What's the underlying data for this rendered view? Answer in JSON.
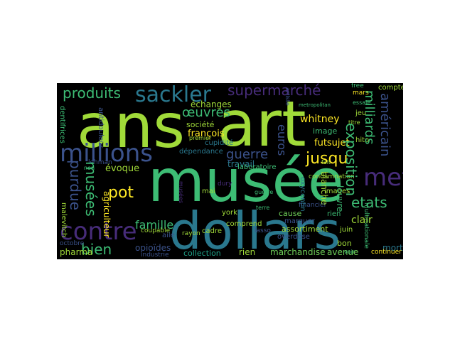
{
  "words": {
    "ans": "ans",
    "art": "art",
    "musee": "musée",
    "dollars": "dollars",
    "millions": "millions",
    "contre": "contre",
    "sackler": "sackler",
    "produits": "produits",
    "supermarche": "supermarché",
    "met": "met",
    "oeuvres": "œuvres",
    "guerre": "guerre",
    "jusqu": "jusqu",
    "exposition": "exposition",
    "milliards": "milliards",
    "americain": "américain",
    "etats": "etats",
    "euros": "euros",
    "purdue": "purdue",
    "musees": "musées",
    "pot": "pot",
    "famille": "famille",
    "bien": "bien",
    "francois": "françois",
    "echanges": "échanges",
    "societe": "société",
    "whitney": "whitney",
    "futsujet": "futsujet",
    "image": "image",
    "evoque": "évoque",
    "travail": "travail",
    "rien1": "rien",
    "rien2": "rien",
    "laboratoire": "laboratoire",
    "blanche": "blanche",
    "louvre": "louvre",
    "mort": "mort",
    "clair": "clair",
    "juin": "juin",
    "bon": "bon",
    "marchandise": "marchandise",
    "avenue": "avenue",
    "collection": "collection",
    "pharma": "pharma",
    "opioides": "opioïdes",
    "industrie": "industrie",
    "compte": "compte",
    "mars": "mars",
    "free": "free",
    "jeu": "jeu",
    "hito": "hito",
    "continuer": "continuer",
    "agriculteur": "agriculteur",
    "dentifrices": "dentifrices",
    "malevitch": "malevitch",
    "cadre": "cadre",
    "comprend": "comprend",
    "assortiment": "assortiment",
    "condamnation": "condamnation",
    "images": "images",
    "cupidite": "cupidité",
    "dependance": "dépendance",
    "cause": "cause",
    "marquer": "marquer",
    "mai": "mai",
    "york": "york",
    "octobre": "octobre",
    "aile": "aile",
    "non": "non",
    "coupable": "coupable",
    "rayon": "rayon",
    "lehman": "lehman",
    "titre": "titre",
    "essaie": "essaie",
    "terre": "terre",
    "overdose": "overdose",
    "voir": "voir",
    "oxycontin": "oxycontin",
    "premier": "premier",
    "antidouleur": "antidouleur",
    "multinationale": "multinationale",
    "metropolitan": "metropolitan",
    "fait": "fait",
    "lasso": "lasso",
    "dury": "dury",
    "artiste": "artiste",
    "musees2": "musées",
    "guerre2": "guerre",
    "financier": "financier"
  },
  "colors": {
    "background": "#000000",
    "yellowgreen": "#a0da39",
    "green": "#3dbc74",
    "teal": "#2a788e",
    "blue": "#3b528b",
    "purple": "#472c7a",
    "yellow": "#fde725",
    "cyan": "#1fa187",
    "lightgreen": "#6ece58"
  }
}
